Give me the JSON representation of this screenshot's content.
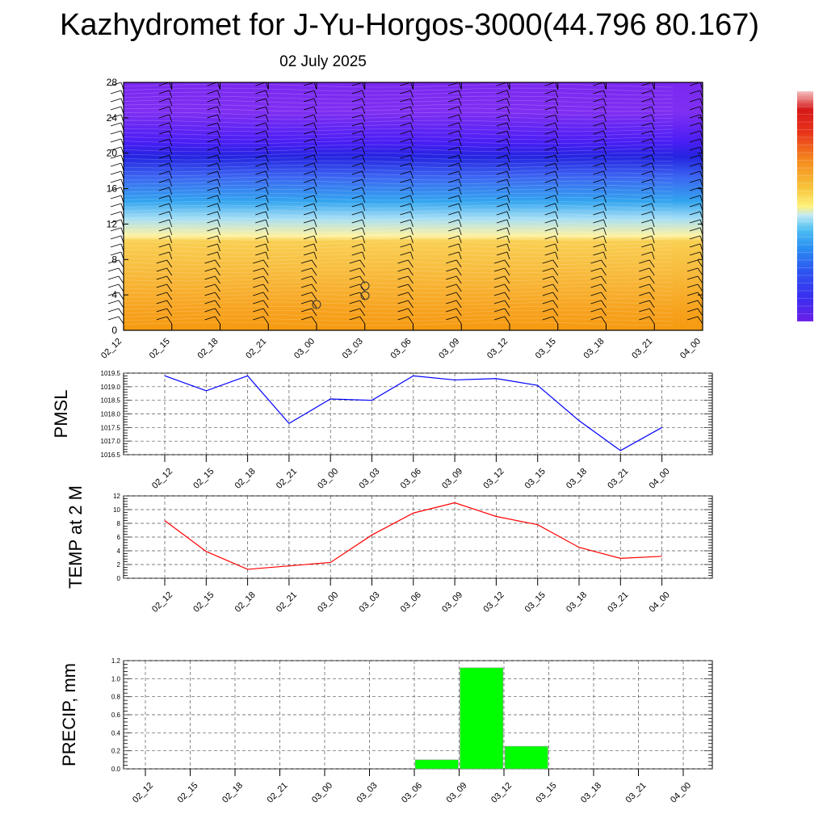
{
  "title": "Kazhydromet for J-Yu-Horgos-3000(44.796 80.167)",
  "subtitle": "02 July 2025",
  "chart_data": [
    {
      "type": "heatmap",
      "description_words": "time-height cross section with filled contours and wind barbs",
      "x_tick_labels": [
        "02_12",
        "02_15",
        "02_18",
        "02_21",
        "03_00",
        "03_03",
        "03_06",
        "03_09",
        "03_12",
        "03_15",
        "03_18",
        "03_21",
        "04_00"
      ],
      "y_ticks": [
        0,
        4,
        8,
        12,
        16,
        20,
        24,
        28
      ],
      "ylim": [
        0,
        28
      ],
      "colorbar": [
        "#5a1fe8",
        "#3b3bf2",
        "#1e6af5",
        "#2aa3f5",
        "#9ad8f5",
        "#f5e24a",
        "#f5a623",
        "#e8441e",
        "#d11a1a",
        "#f5b0b0"
      ]
    },
    {
      "type": "line",
      "ylabel": "PMSL",
      "categories": [
        "02_12",
        "02_15",
        "02_18",
        "02_21",
        "03_00",
        "03_03",
        "03_06",
        "03_09",
        "03_12",
        "03_15",
        "03_18",
        "03_21",
        "04_00"
      ],
      "values": [
        1019.4,
        1018.85,
        1019.4,
        1017.65,
        1018.55,
        1018.5,
        1019.4,
        1019.25,
        1019.3,
        1019.05,
        1017.75,
        1016.65,
        1017.5
      ],
      "ylim": [
        1016.5,
        1019.5
      ],
      "y_ticks": [
        "1016.5",
        "1017.0",
        "1017.5",
        "1018.0",
        "1018.5",
        "1019.0",
        "1019.5"
      ],
      "color": "#0000ff"
    },
    {
      "type": "line",
      "ylabel": "TEMP at 2 M",
      "categories": [
        "02_12",
        "02_15",
        "02_18",
        "02_21",
        "03_00",
        "03_03",
        "03_06",
        "03_09",
        "03_12",
        "03_15",
        "03_18",
        "03_21",
        "04_00"
      ],
      "values": [
        8.4,
        3.9,
        1.3,
        1.8,
        2.3,
        6.3,
        9.5,
        11.0,
        9.0,
        7.8,
        4.5,
        2.9,
        3.2
      ],
      "ylim": [
        0,
        12
      ],
      "y_ticks": [
        "0",
        "2",
        "4",
        "6",
        "8",
        "10",
        "12"
      ],
      "color": "#ff0000"
    },
    {
      "type": "bar",
      "ylabel": "PRECIP, mm",
      "categories": [
        "02_12",
        "02_15",
        "02_18",
        "02_21",
        "03_00",
        "03_03",
        "03_06",
        "03_09",
        "03_12",
        "03_15",
        "03_18",
        "03_21",
        "04_00"
      ],
      "values": [
        0,
        0,
        0,
        0,
        0,
        0,
        0,
        0.1,
        1.12,
        0.25,
        0,
        0,
        0
      ],
      "ylim": [
        0,
        1.2
      ],
      "y_ticks": [
        "0.0",
        "0.2",
        "0.4",
        "0.6",
        "0.8",
        "1.0",
        "1.2"
      ],
      "color": "#00ff00"
    }
  ]
}
